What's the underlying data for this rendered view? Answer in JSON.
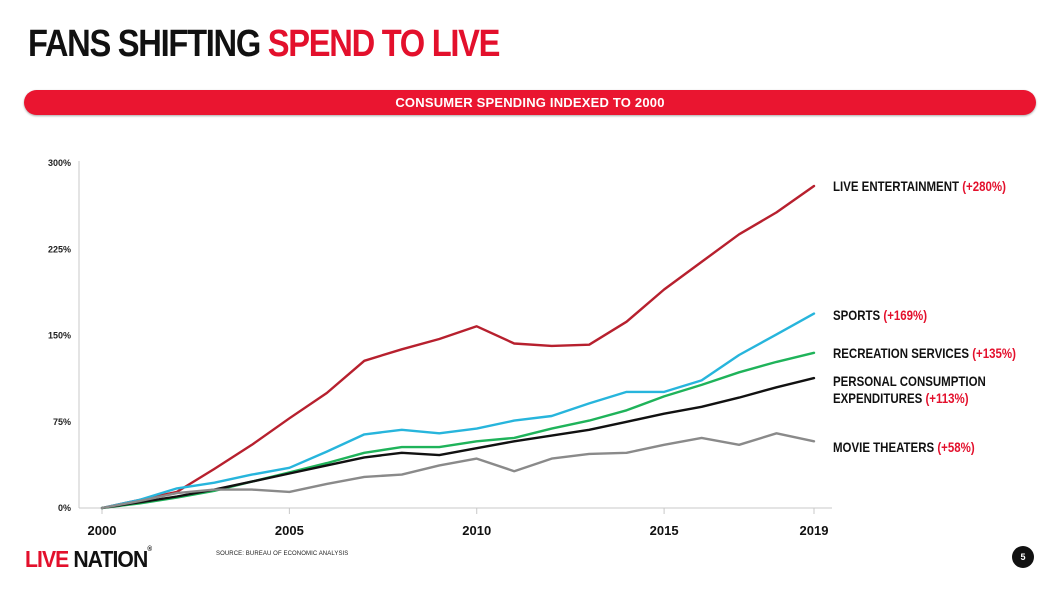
{
  "slide": {
    "title_part1": "FANS SHIFTING ",
    "title_part2": "SPEND TO LIVE",
    "banner": "CONSUMER SPENDING INDEXED TO 2000",
    "logo_part1": "LIVE",
    "logo_part2": " NATION",
    "logo_reg": "®",
    "source": "SOURCE: BUREAU OF ECONOMIC ANALYSIS",
    "page_number": "5"
  },
  "colors": {
    "brand_red": "#e3102c",
    "live_entertainment": "#b7202e",
    "sports": "#27b5dc",
    "recreation_services": "#1fb35a",
    "personal_consumption": "#111111",
    "movie_theaters": "#8a8a8a"
  },
  "chart_data": {
    "type": "line",
    "x": [
      2000,
      2001,
      2002,
      2003,
      2004,
      2005,
      2006,
      2007,
      2008,
      2009,
      2010,
      2011,
      2012,
      2013,
      2014,
      2015,
      2016,
      2017,
      2018,
      2019
    ],
    "xlim": [
      2000,
      2019
    ],
    "ylim": [
      0,
      300
    ],
    "x_ticks": [
      {
        "value": 2000,
        "label": "2000"
      },
      {
        "value": 2005,
        "label": "2005"
      },
      {
        "value": 2010,
        "label": "2010"
      },
      {
        "value": 2015,
        "label": "2015"
      },
      {
        "value": 2019,
        "label": "2019"
      }
    ],
    "y_ticks": [
      {
        "value": 0,
        "label": "0%"
      },
      {
        "value": 75,
        "label": "75%"
      },
      {
        "value": 150,
        "label": "150%"
      },
      {
        "value": 225,
        "label": "225%"
      },
      {
        "value": 300,
        "label": "300%"
      }
    ],
    "grid": false,
    "legend": "right-end labels",
    "series": [
      {
        "key": "live_entertainment",
        "name": "LIVE ENTERTAINMENT",
        "change": "(+280%)",
        "color": "#b7202e",
        "values": [
          0,
          7,
          14,
          34,
          55,
          78,
          100,
          128,
          138,
          147,
          158,
          143,
          141,
          142,
          162,
          190,
          214,
          238,
          257,
          280
        ]
      },
      {
        "key": "sports",
        "name": "SPORTS",
        "change": "(+169%)",
        "color": "#27b5dc",
        "values": [
          0,
          7,
          17,
          22,
          29,
          35,
          49,
          64,
          68,
          65,
          69,
          76,
          80,
          91,
          101,
          101,
          111,
          133,
          151,
          169
        ]
      },
      {
        "key": "recreation_services",
        "name": "RECREATION SERVICES",
        "change": "(+135%)",
        "color": "#1fb35a",
        "values": [
          0,
          4,
          9,
          15,
          23,
          31,
          39,
          48,
          53,
          53,
          58,
          61,
          69,
          76,
          85,
          97,
          107,
          118,
          127,
          135
        ]
      },
      {
        "key": "personal_consumption",
        "name": "PERSONAL CONSUMPTION",
        "name_line2": "EXPENDITURES",
        "change": "(+113%)",
        "color": "#111111",
        "values": [
          0,
          5,
          10,
          16,
          23,
          30,
          37,
          44,
          48,
          46,
          52,
          58,
          63,
          68,
          75,
          82,
          88,
          96,
          105,
          113
        ]
      },
      {
        "key": "movie_theaters",
        "name": "MOVIE THEATERS",
        "change": "(+58%)",
        "color": "#8a8a8a",
        "values": [
          0,
          6,
          13,
          16,
          16,
          14,
          21,
          27,
          29,
          37,
          43,
          32,
          43,
          47,
          48,
          55,
          61,
          55,
          65,
          58
        ]
      }
    ]
  }
}
